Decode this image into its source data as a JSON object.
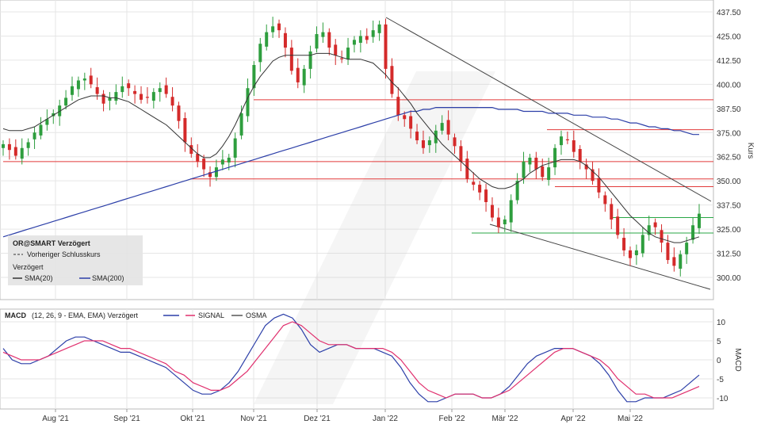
{
  "chart_data": [
    {
      "type": "candlestick",
      "instrument": "OR@SMART",
      "legend": {
        "title": "OR@SMART Verzögert",
        "prev_close": "Vorheriger Schlusskurs",
        "subtitle": "Verzögert",
        "sma20": "SMA(20)",
        "sma200": "SMA(200)",
        "placement": "bottom-left"
      },
      "ylabel": "Kurs",
      "ylim": [
        288,
        442
      ],
      "yticks": [
        "437.50",
        "425.00",
        "412.50",
        "400.00",
        "387.50",
        "375.00",
        "362.50",
        "350.00",
        "337.50",
        "325.00",
        "312.50",
        "300.00"
      ],
      "xticks": [
        "Aug '21",
        "Sep '21",
        "Okt '21",
        "Nov '21",
        "Dez '21",
        "Jan '22",
        "Feb '22",
        "Mär '22",
        "Apr '22",
        "Mai '22"
      ],
      "grid": true,
      "colors": {
        "up": "#2e9e3e",
        "down": "#d42a2a",
        "sma20": "#333333",
        "sma200": "#2c3fa8",
        "resistance": "#e23a3a",
        "support": "#28a745",
        "trend": "#444444"
      },
      "horizontal_lines_red": [
        392,
        376.5,
        360,
        351,
        347
      ],
      "horizontal_lines_green": [
        331,
        323
      ],
      "close": [
        369,
        366,
        363,
        367,
        370,
        375,
        379,
        382,
        385,
        389,
        393,
        399,
        402,
        403,
        400,
        395,
        390,
        393,
        396,
        399,
        398,
        395,
        392,
        393,
        396,
        398,
        395,
        389,
        381,
        370,
        364,
        360,
        356,
        352,
        357,
        361,
        362,
        372,
        385,
        398,
        410,
        421,
        427,
        430,
        428,
        419,
        407,
        401,
        408,
        417,
        426,
        427,
        419,
        415,
        413,
        419,
        423,
        425,
        423,
        428,
        431,
        408,
        395,
        384,
        382,
        377,
        371,
        367,
        371,
        376,
        380,
        374,
        368,
        360,
        351,
        348,
        344,
        339,
        331,
        326,
        330,
        340,
        350,
        360,
        362,
        356,
        352,
        357,
        367,
        373,
        371,
        365,
        360,
        356,
        350,
        344,
        338,
        330,
        322,
        314,
        310,
        314,
        322,
        327,
        326,
        318,
        309,
        306,
        312,
        318,
        327,
        333
      ],
      "sma20": [
        377,
        376,
        376,
        376,
        377,
        378,
        380,
        382,
        384,
        386,
        388,
        390,
        392,
        393,
        394,
        394,
        394,
        393,
        393,
        392,
        391,
        389,
        387,
        385,
        383,
        381,
        379,
        376,
        373,
        370,
        367,
        364,
        362,
        362,
        364,
        368,
        373,
        379,
        386,
        393,
        399,
        404,
        408,
        412,
        414,
        415,
        415,
        415,
        415,
        415,
        416,
        416,
        416,
        415,
        414,
        413,
        413,
        413,
        412,
        411,
        408,
        405,
        401,
        398,
        394,
        390,
        385,
        381,
        377,
        373,
        369,
        366,
        363,
        360,
        357,
        354,
        351,
        349,
        347,
        346,
        346,
        347,
        349,
        351,
        354,
        356,
        358,
        359,
        360,
        361,
        361,
        361,
        360,
        358,
        355,
        352,
        348,
        344,
        340,
        336,
        332,
        329,
        326,
        323,
        321,
        320,
        319,
        318,
        318,
        319,
        320,
        321
      ],
      "sma200": [
        321,
        322,
        323,
        324,
        325,
        326,
        327,
        328,
        329,
        330,
        331,
        332,
        333,
        334,
        335,
        336,
        337,
        338,
        339,
        340,
        341,
        342,
        343,
        344,
        345,
        346,
        347,
        348,
        349,
        350,
        351,
        352,
        353,
        354,
        355,
        356,
        357,
        358,
        359,
        360,
        361,
        362,
        363,
        364,
        365,
        366,
        367,
        368,
        369,
        370,
        371,
        372,
        373,
        374,
        375,
        376,
        377,
        378,
        379,
        380,
        381,
        382,
        383,
        384,
        385,
        386,
        386,
        387,
        387,
        388,
        388,
        388,
        388,
        388,
        388,
        388,
        388,
        388,
        388,
        387,
        387,
        387,
        387,
        386,
        386,
        386,
        386,
        385,
        385,
        385,
        385,
        384,
        384,
        384,
        383,
        383,
        383,
        382,
        382,
        381,
        380,
        380,
        379,
        378,
        378,
        377,
        377,
        376,
        376,
        375,
        374,
        374
      ]
    },
    {
      "type": "line",
      "title": "MACD",
      "params": "(12, 26, 9 - EMA, EMA) Verzögert",
      "ylabel": "MACD",
      "ylim": [
        -12,
        13
      ],
      "yticks": [
        "10",
        "5",
        "0",
        "-5",
        "-10"
      ],
      "grid": true,
      "series": [
        {
          "name": "",
          "color": "#2c3fa8",
          "values": [
            3,
            0,
            -1,
            -1,
            0,
            1,
            3,
            5,
            6,
            6,
            5,
            4,
            3,
            2,
            2,
            1,
            0,
            -1,
            -2,
            -4,
            -6,
            -8,
            -9,
            -9,
            -8,
            -6,
            -3,
            1,
            5,
            9,
            11,
            12,
            11,
            8,
            4,
            2,
            3,
            4,
            4,
            3,
            3,
            3,
            2,
            1,
            -2,
            -6,
            -9,
            -11,
            -11,
            -10,
            -9,
            -9,
            -9,
            -10,
            -10,
            -9,
            -7,
            -4,
            -1,
            1,
            2,
            3,
            3,
            3,
            2,
            1,
            -1,
            -4,
            -8,
            -11,
            -11,
            -10,
            -10,
            -10,
            -9,
            -8,
            -6,
            -4
          ]
        },
        {
          "name": "SIGNAL",
          "color": "#e0306e",
          "values": [
            2,
            1,
            0,
            0,
            0,
            1,
            2,
            3,
            4,
            5,
            5,
            5,
            4,
            3,
            3,
            2,
            1,
            0,
            -1,
            -3,
            -4,
            -6,
            -7,
            -8,
            -8,
            -7,
            -5,
            -3,
            0,
            3,
            6,
            9,
            10,
            9,
            7,
            5,
            4,
            4,
            4,
            3,
            3,
            3,
            3,
            2,
            0,
            -3,
            -6,
            -8,
            -9,
            -10,
            -9,
            -9,
            -9,
            -10,
            -10,
            -9,
            -8,
            -6,
            -4,
            -2,
            0,
            2,
            3,
            3,
            2,
            1,
            0,
            -2,
            -5,
            -7,
            -9,
            -9,
            -10,
            -10,
            -10,
            -9,
            -8,
            -7
          ]
        },
        {
          "name": "OSMA",
          "color": "#555555",
          "values": []
        }
      ]
    }
  ]
}
